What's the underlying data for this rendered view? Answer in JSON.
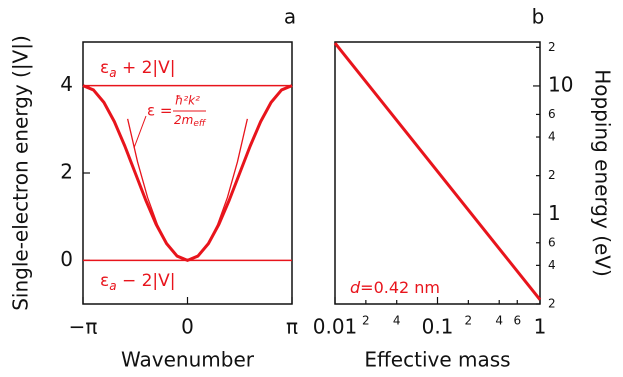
{
  "chart_data": [
    {
      "type": "line",
      "panel_label": "a",
      "xlabel": "Wavenumber",
      "ylabel": "Single-electron energy (|V|)",
      "xlim": [
        -3.14159,
        3.14159
      ],
      "xticks": [
        {
          "value": -3.14159,
          "label": "−π"
        },
        0,
        {
          "value": 3.14159,
          "label": "π"
        }
      ],
      "ylim": [
        -1,
        5
      ],
      "yticks": [
        0,
        2,
        4
      ],
      "y_axis_side": "left",
      "series": [
        {
          "color": "#e8141c",
          "linewidth": 3,
          "x": [
            -3.1416,
            -2.8274,
            -2.5133,
            -2.1991,
            -1.885,
            -1.5708,
            -1.2566,
            -0.9425,
            -0.6283,
            -0.3142,
            0,
            0.3142,
            0.6283,
            0.9425,
            1.2566,
            1.5708,
            1.885,
            2.1991,
            2.5133,
            2.8274,
            3.1416
          ],
          "values": [
            4,
            3.902,
            3.618,
            3.176,
            2.618,
            2,
            1.382,
            0.824,
            0.382,
            0.098,
            0,
            0.098,
            0.382,
            0.824,
            1.382,
            2,
            2.618,
            3.176,
            3.618,
            3.902,
            4
          ]
        },
        {
          "color": "#e8141c",
          "linewidth": 1.3,
          "x": [
            -1.8,
            -1.5,
            -1.2,
            -0.9,
            -0.6,
            -0.3,
            0,
            0.3,
            0.6,
            0.9,
            1.2,
            1.5,
            1.8
          ],
          "values": [
            3.24,
            2.25,
            1.44,
            0.81,
            0.36,
            0.09,
            0,
            0.09,
            0.36,
            0.81,
            1.44,
            2.25,
            3.24
          ]
        },
        {
          "color": "#e8141c",
          "linewidth": 1.5,
          "x": [
            -3.14159,
            3.14159
          ],
          "values": [
            4,
            4
          ]
        },
        {
          "color": "#e8141c",
          "linewidth": 1.5,
          "x": [
            -3.14159,
            3.14159
          ],
          "values": [
            0,
            0
          ]
        }
      ],
      "annotations": [
        {
          "parts": [
            "ε",
            "a",
            " + 2|V|"
          ]
        },
        {
          "parts": [
            "ε",
            "a",
            " − 2|V|"
          ]
        },
        {
          "parts": [
            "ε =",
            "ħ²k²",
            "2m",
            "eff"
          ]
        }
      ]
    },
    {
      "type": "line",
      "panel_label": "b",
      "xlabel": "Effective mass",
      "ylabel": "Hopping energy (eV)",
      "xscale": "log",
      "yscale": "log",
      "xlim": [
        0.01,
        1
      ],
      "xticks": [
        0.01,
        {
          "value": 0.02,
          "label": "2"
        },
        {
          "value": 0.04,
          "label": "4"
        },
        0.1,
        {
          "value": 0.2,
          "label": "2"
        },
        {
          "value": 0.4,
          "label": "4"
        },
        {
          "value": 0.6,
          "label": "6"
        },
        1
      ],
      "ylim": [
        0.2,
        22
      ],
      "yticks": [
        {
          "value": 20,
          "label": "2"
        },
        10,
        {
          "value": 6,
          "label": "6"
        },
        {
          "value": 4,
          "label": "4"
        },
        {
          "value": 2,
          "label": "2"
        },
        1,
        {
          "value": 0.6,
          "label": "6"
        },
        {
          "value": 0.4,
          "label": "4"
        },
        {
          "value": 0.2,
          "label": "2"
        }
      ],
      "y_axis_side": "right",
      "series": [
        {
          "color": "#e8141c",
          "linewidth": 3,
          "x": [
            0.01,
            1
          ],
          "values": [
            21.6,
            0.216
          ]
        }
      ],
      "annotations": [
        {
          "parts": [
            "d",
            "=0.42 nm"
          ]
        }
      ]
    }
  ]
}
